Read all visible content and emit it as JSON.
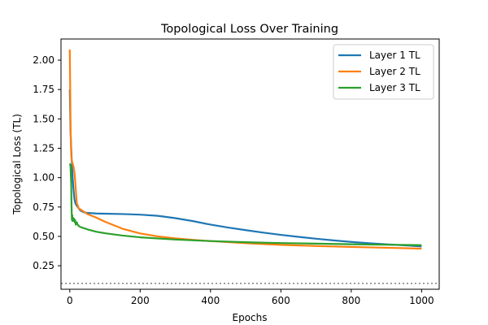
{
  "chart_data": {
    "type": "line",
    "title": "Topological Loss Over Training",
    "xlabel": "Epochs",
    "ylabel": "Topological Loss (TL)",
    "xlim": [
      -25,
      1050
    ],
    "ylim": [
      0.05,
      2.18
    ],
    "xticks": [
      0,
      200,
      400,
      600,
      800,
      1000
    ],
    "yticks": [
      0.25,
      0.5,
      0.75,
      1.0,
      1.25,
      1.5,
      1.75,
      2.0
    ],
    "ytick_labels": [
      "0.25",
      "0.50",
      "0.75",
      "1.00",
      "1.25",
      "1.50",
      "1.75",
      "2.00"
    ],
    "xtick_labels": [
      "0",
      "200",
      "400",
      "600",
      "800",
      "1000"
    ],
    "grid": false,
    "legend_position": "top-right",
    "reference_line": {
      "y": 0.1,
      "style": "dotted",
      "color": "#808080"
    },
    "series": [
      {
        "name": "Layer 1 TL",
        "color": "#1f77b4",
        "x": [
          0,
          2,
          5,
          8,
          10,
          13,
          16,
          20,
          25,
          30,
          40,
          50,
          75,
          100,
          150,
          200,
          250,
          300,
          350,
          400,
          450,
          500,
          550,
          600,
          650,
          700,
          750,
          800,
          850,
          900,
          950,
          1000
        ],
        "y": [
          1.75,
          1.4,
          1.18,
          1.0,
          0.92,
          0.82,
          0.78,
          0.76,
          0.74,
          0.72,
          0.705,
          0.7,
          0.695,
          0.693,
          0.69,
          0.685,
          0.675,
          0.655,
          0.63,
          0.6,
          0.575,
          0.553,
          0.532,
          0.513,
          0.496,
          0.48,
          0.466,
          0.453,
          0.442,
          0.432,
          0.424,
          0.415
        ]
      },
      {
        "name": "Layer 2 TL",
        "color": "#ff7f0e",
        "x": [
          0,
          1,
          2,
          3,
          4,
          5,
          7,
          10,
          13,
          15,
          18,
          20,
          23,
          25,
          30,
          40,
          50,
          75,
          100,
          150,
          200,
          250,
          300,
          350,
          400,
          500,
          600,
          700,
          800,
          900,
          1000
        ],
        "y": [
          2.09,
          1.8,
          1.5,
          1.3,
          1.2,
          1.16,
          1.13,
          1.1,
          1.05,
          0.98,
          0.86,
          0.78,
          0.76,
          0.74,
          0.73,
          0.71,
          0.69,
          0.66,
          0.625,
          0.565,
          0.525,
          0.5,
          0.483,
          0.47,
          0.46,
          0.442,
          0.428,
          0.418,
          0.41,
          0.403,
          0.396
        ]
      },
      {
        "name": "Layer 3 TL",
        "color": "#2ca02c",
        "x": [
          0,
          2,
          4,
          5,
          6,
          7,
          8,
          9,
          10,
          12,
          14,
          15,
          17,
          20,
          22,
          25,
          30,
          40,
          50,
          75,
          100,
          150,
          200,
          300,
          400,
          500,
          600,
          700,
          800,
          900,
          1000
        ],
        "y": [
          1.12,
          1.1,
          0.95,
          0.75,
          0.64,
          0.68,
          0.63,
          0.66,
          0.64,
          0.65,
          0.62,
          0.64,
          0.6,
          0.62,
          0.6,
          0.59,
          0.58,
          0.57,
          0.56,
          0.54,
          0.527,
          0.507,
          0.492,
          0.473,
          0.46,
          0.45,
          0.443,
          0.438,
          0.433,
          0.429,
          0.425
        ]
      }
    ]
  }
}
